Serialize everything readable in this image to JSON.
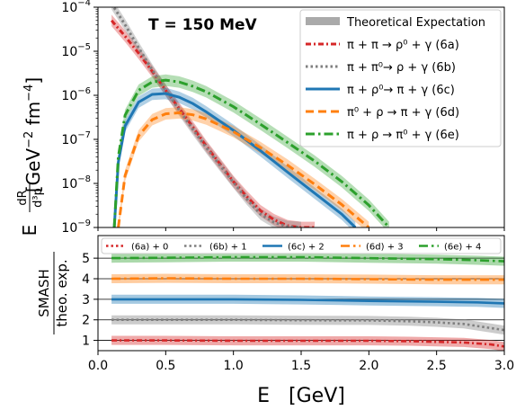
{
  "chart_data": [
    {
      "type": "line",
      "panel": "top",
      "title": "T = 150 MeV",
      "ylabel_main": "[GeV",
      "ylabel_exp1": "−2",
      "ylabel_mid": " fm",
      "ylabel_exp2": "−4",
      "ylabel_end": "]",
      "ylabel_prefix": "E",
      "ylabel_frac_num": "dR",
      "ylabel_frac_den": "d³p",
      "yscale": "log",
      "ylim": [
        1e-09,
        0.0001
      ],
      "xlim": [
        0.0,
        3.0
      ],
      "yticks": [
        {
          "value": 1e-09,
          "base": "10",
          "exp": "−9"
        },
        {
          "value": 1e-08,
          "base": "10",
          "exp": "−8"
        },
        {
          "value": 1e-07,
          "base": "10",
          "exp": "−7"
        },
        {
          "value": 1e-06,
          "base": "10",
          "exp": "−6"
        },
        {
          "value": 1e-05,
          "base": "10",
          "exp": "−5"
        },
        {
          "value": 0.0001,
          "base": "10",
          "exp": "−4"
        }
      ],
      "legend_position": "top-right",
      "legend": [
        {
          "label": "Theoretical Expectation",
          "color": "#aaaaaa",
          "style": "band"
        },
        {
          "label": "π + π → ρ⁰ + γ (6a)",
          "color": "#d62728",
          "style": "dashdot-dense"
        },
        {
          "label": "π + π⁰→ ρ + γ (6b)",
          "color": "#7f7f7f",
          "style": "dotted"
        },
        {
          "label": "π + ρ⁰→ π + γ (6c)",
          "color": "#1f77b4",
          "style": "solid"
        },
        {
          "label": "π⁰ + ρ → π + γ (6d)",
          "color": "#ff7f0e",
          "style": "dashed"
        },
        {
          "label": "π + ρ → π⁰ + γ (6e)",
          "color": "#2ca02c",
          "style": "dashdot"
        }
      ],
      "series": [
        {
          "name": "(6a)",
          "color": "#d62728",
          "style": "dashdot-dense",
          "x": [
            0.1,
            0.2,
            0.3,
            0.4,
            0.5,
            0.6,
            0.7,
            0.8,
            0.9,
            1.0,
            1.1,
            1.2,
            1.3,
            1.4,
            1.5,
            1.6
          ],
          "y": [
            5e-05,
            2.2e-05,
            9e-06,
            3.5e-06,
            1.3e-06,
            5e-07,
            1.9e-07,
            7e-08,
            2.8e-08,
            1.1e-08,
            5e-09,
            2.4e-09,
            1.5e-09,
            1.1e-09,
            1e-09,
            1e-09
          ]
        },
        {
          "name": "(6b)",
          "color": "#7f7f7f",
          "style": "dotted",
          "x": [
            0.1,
            0.2,
            0.3,
            0.4,
            0.5,
            0.6,
            0.7,
            0.8,
            0.9,
            1.0,
            1.1,
            1.2,
            1.3,
            1.4,
            1.5
          ],
          "y": [
            0.00012,
            4e-05,
            1.2e-05,
            3.8e-06,
            1.3e-06,
            4.6e-07,
            1.7e-07,
            6.5e-08,
            2.6e-08,
            1.05e-08,
            4.4e-09,
            2e-09,
            1.3e-09,
            1.05e-09,
            1e-09
          ]
        },
        {
          "name": "(6c)",
          "color": "#1f77b4",
          "style": "solid",
          "x": [
            0.12,
            0.15,
            0.2,
            0.3,
            0.4,
            0.5,
            0.6,
            0.7,
            0.8,
            1.0,
            1.2,
            1.4,
            1.6,
            1.8,
            1.9
          ],
          "y": [
            1e-09,
            3e-08,
            2e-07,
            7e-07,
            1.05e-06,
            1.1e-06,
            9e-07,
            6.5e-07,
            4.2e-07,
            1.6e-07,
            5.5e-08,
            1.8e-08,
            6e-09,
            2e-09,
            1e-09
          ]
        },
        {
          "name": "(6d)",
          "color": "#ff7f0e",
          "style": "dashed",
          "x": [
            0.15,
            0.2,
            0.3,
            0.4,
            0.5,
            0.6,
            0.7,
            0.8,
            1.0,
            1.2,
            1.4,
            1.6,
            1.8,
            2.0
          ],
          "y": [
            1e-09,
            1.5e-08,
            1.2e-07,
            2.8e-07,
            3.8e-07,
            4e-07,
            3.6e-07,
            2.9e-07,
            1.5e-07,
            6.5e-08,
            2.6e-08,
            9.5e-09,
            3.3e-09,
            1e-09
          ]
        },
        {
          "name": "(6e)",
          "color": "#2ca02c",
          "style": "dashdot",
          "x": [
            0.12,
            0.15,
            0.2,
            0.3,
            0.4,
            0.5,
            0.6,
            0.7,
            0.8,
            1.0,
            1.2,
            1.4,
            1.6,
            1.8,
            2.0,
            2.15
          ],
          "y": [
            1e-09,
            4e-08,
            3.5e-07,
            1.3e-06,
            2e-06,
            2.2e-06,
            2e-06,
            1.6e-06,
            1.2e-06,
            5.5e-07,
            2.2e-07,
            8.5e-08,
            3.2e-08,
            1.1e-08,
            3.2e-09,
            1e-09
          ]
        }
      ]
    },
    {
      "type": "line",
      "panel": "bottom",
      "xlabel": "E   [GeV]",
      "ylabel_num": "SMASH",
      "ylabel_den": "theo. exp.",
      "xlim": [
        0.0,
        3.0
      ],
      "ylim": [
        0.5,
        6.1
      ],
      "xticks": [
        "0.0",
        "0.5",
        "1.0",
        "1.5",
        "2.0",
        "2.5",
        "3.0"
      ],
      "yticks": [
        "1",
        "2",
        "3",
        "4",
        "5"
      ],
      "legend_position": "top",
      "legend": [
        {
          "label": "(6a) + 0",
          "color": "#d62728",
          "style": "dotted"
        },
        {
          "label": "(6b) + 1",
          "color": "#7f7f7f",
          "style": "dotted"
        },
        {
          "label": "(6c) + 2",
          "color": "#1f77b4",
          "style": "solid"
        },
        {
          "label": "(6d) + 3",
          "color": "#ff7f0e",
          "style": "dashdot"
        },
        {
          "label": "(6e) + 4",
          "color": "#2ca02c",
          "style": "dashdot"
        }
      ],
      "series": [
        {
          "name": "(6a) + 0",
          "color": "#d62728",
          "style": "dashdot-dense",
          "x": [
            0.1,
            0.5,
            1.0,
            1.5,
            2.0,
            2.3,
            2.5,
            2.7,
            2.9,
            3.0
          ],
          "y": [
            1.0,
            1.0,
            0.98,
            0.98,
            0.98,
            0.96,
            0.93,
            0.9,
            0.8,
            0.7
          ]
        },
        {
          "name": "(6b) + 1",
          "color": "#7f7f7f",
          "style": "dotted",
          "x": [
            0.1,
            0.5,
            1.0,
            1.5,
            2.0,
            2.3,
            2.5,
            2.7,
            2.9,
            3.0
          ],
          "y": [
            2.0,
            2.0,
            2.0,
            1.98,
            1.97,
            1.93,
            1.88,
            1.8,
            1.6,
            1.5
          ]
        },
        {
          "name": "(6c) + 2",
          "color": "#1f77b4",
          "style": "solid",
          "x": [
            0.1,
            0.5,
            1.0,
            1.5,
            2.0,
            2.5,
            2.8,
            3.0
          ],
          "y": [
            3.0,
            3.0,
            3.0,
            2.97,
            2.92,
            2.88,
            2.85,
            2.8
          ]
        },
        {
          "name": "(6d) + 3",
          "color": "#ff7f0e",
          "style": "dashdot",
          "x": [
            0.1,
            0.5,
            1.0,
            1.5,
            2.0,
            2.5,
            3.0
          ],
          "y": [
            4.0,
            4.02,
            4.0,
            4.0,
            3.98,
            3.95,
            3.95
          ]
        },
        {
          "name": "(6e) + 4",
          "color": "#2ca02c",
          "style": "dashdot",
          "x": [
            0.1,
            0.5,
            1.0,
            1.5,
            2.0,
            2.5,
            2.8,
            3.0
          ],
          "y": [
            5.0,
            5.02,
            5.05,
            5.05,
            5.0,
            4.95,
            4.9,
            4.85
          ]
        }
      ]
    }
  ]
}
